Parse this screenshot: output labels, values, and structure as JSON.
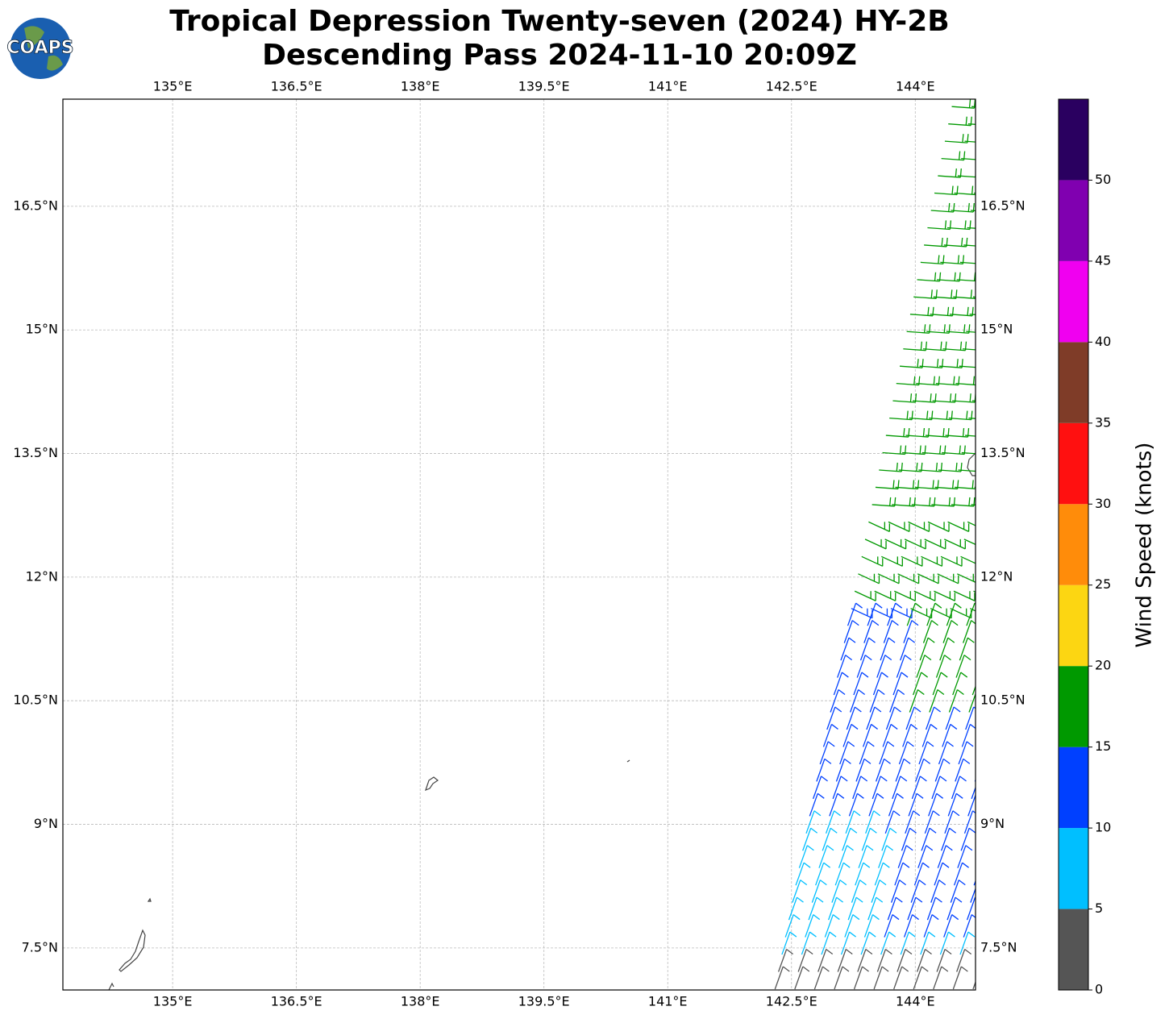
{
  "logo": "COAPS",
  "chart_data": {
    "type": "map",
    "title": "Tropical Depression Twenty-seven (2024) HY-2B",
    "subtitle": "Descending Pass 2024-11-10 20:09Z",
    "xlim": [
      133.67,
      144.73
    ],
    "ylim": [
      6.99,
      17.8
    ],
    "xticks": [
      {
        "value": 135,
        "label": "135°E"
      },
      {
        "value": 136.5,
        "label": "136.5°E"
      },
      {
        "value": 138,
        "label": "138°E"
      },
      {
        "value": 139.5,
        "label": "139.5°E"
      },
      {
        "value": 141,
        "label": "141°E"
      },
      {
        "value": 142.5,
        "label": "142.5°E"
      },
      {
        "value": 144,
        "label": "144°E"
      }
    ],
    "yticks": [
      {
        "value": 7.5,
        "label": "7.5°N"
      },
      {
        "value": 9,
        "label": "9°N"
      },
      {
        "value": 10.5,
        "label": "10.5°N"
      },
      {
        "value": 12,
        "label": "12°N"
      },
      {
        "value": 13.5,
        "label": "13.5°N"
      },
      {
        "value": 15,
        "label": "15°N"
      },
      {
        "value": 16.5,
        "label": "16.5°N"
      }
    ],
    "grid": true,
    "colorbar": {
      "label": "Wind Speed (knots)",
      "lim": [
        0,
        55
      ],
      "ticks": [
        0,
        5,
        10,
        15,
        20,
        25,
        30,
        35,
        40,
        45,
        50
      ],
      "colors": [
        "#555555",
        "#00bfff",
        "#0040ff",
        "#009900",
        "#fcd612",
        "#ff8c0a",
        "#ff1010",
        "#7f3c28",
        "#f000f0",
        "#8000b0",
        "#2a0060"
      ]
    }
  }
}
